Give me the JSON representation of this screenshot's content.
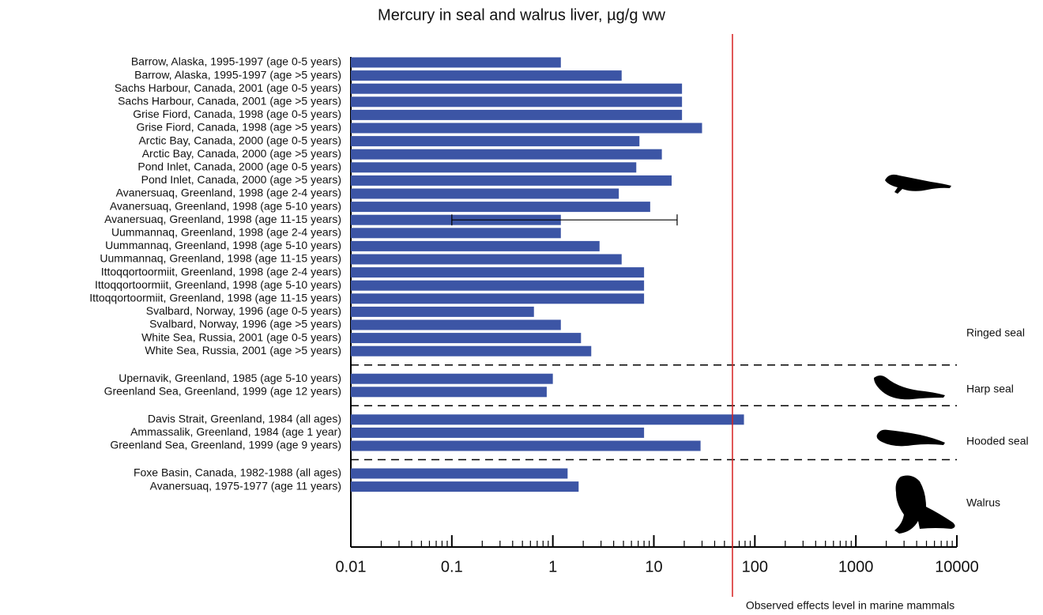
{
  "chart_data": {
    "type": "bar",
    "title": "Mercury in seal and walrus liver, µg/g ww",
    "log_x": true,
    "color": "#3c55a5",
    "groups": [
      {
        "name": "Ringed seal",
        "categories": [
          "Barrow, Alaska, 1995-1997 (age 0-5 years)",
          "Barrow, Alaska, 1995-1997 (age >5 years)",
          "Sachs Harbour, Canada, 2001 (age 0-5 years)",
          "Sachs Harbour, Canada, 2001 (age >5 years)",
          "Grise Fiord, Canada, 1998  (age 0-5 years)",
          "Grise Fiord, Canada, 1998 (age >5 years)",
          "Arctic Bay, Canada, 2000  (age 0-5 years)",
          "Arctic Bay, Canada, 2000 (age >5 years)",
          "Pond Inlet, Canada, 2000  (age 0-5 years)",
          "Pond Inlet, Canada, 2000 (age >5 years)",
          "Avanersuaq, Greenland, 1998 (age 2-4 years)",
          "Avanersuaq, Greenland, 1998 (age 5-10 years)",
          "Avanersuaq, Greenland, 1998 (age 11-15 years)",
          "Uummannaq, Greenland, 1998 (age 2-4 years)",
          "Uummannaq, Greenland, 1998 (age 5-10 years)",
          "Uummannaq, Greenland, 1998 (age 11-15 years)",
          "Ittoqqortoormiit, Greenland, 1998 (age 2-4 years)",
          "Ittoqqortoormiit, Greenland, 1998 (age 5-10 years)",
          "Ittoqqortoormiit, Greenland, 1998 (age 11-15 years)",
          "Svalbard, Norway, 1996  (age 0-5 years)",
          "Svalbard, Norway, 1996 (age >5 years)",
          "White Sea, Russia, 2001  (age 0-5 years)",
          "White Sea, Russia, 2001 (age >5 years)"
        ],
        "values": [
          1.2,
          4.8,
          19,
          19,
          19,
          30,
          7.2,
          12,
          6.7,
          15,
          4.5,
          9.2,
          1.2,
          1.2,
          2.9,
          4.8,
          8,
          8,
          8,
          0.65,
          1.2,
          1.9,
          2.4
        ],
        "error_low": [
          null,
          null,
          null,
          null,
          null,
          null,
          null,
          null,
          null,
          null,
          null,
          null,
          0.1,
          null,
          null,
          null,
          null,
          null,
          null,
          null,
          null,
          null,
          null
        ],
        "error_high": [
          null,
          null,
          null,
          null,
          null,
          null,
          null,
          null,
          null,
          null,
          null,
          null,
          17,
          null,
          null,
          null,
          null,
          null,
          null,
          null,
          null,
          null,
          null
        ]
      },
      {
        "name": "Harp seal",
        "categories": [
          "Upernavik, Greenland, 1985 (age 5-10 years)",
          "Greenland Sea, Greenland, 1999 (age 12 years)"
        ],
        "values": [
          1.0,
          0.87
        ]
      },
      {
        "name": "Hooded seal",
        "categories": [
          "Davis Strait, Greenland, 1984 (all ages)",
          "Ammassalik, Greenland, 1984 (age 1 year)",
          "Greenland Sea, Greenland, 1999 (age 9 years)"
        ],
        "values": [
          78,
          8,
          29
        ]
      },
      {
        "name": "Walrus",
        "categories": [
          "Foxe Basin, Canada, 1982-1988 (all ages)",
          "Avanersuaq, 1975-1977 (age 11 years)"
        ],
        "values": [
          1.4,
          1.8
        ]
      }
    ],
    "xlim": [
      0.01,
      10000
    ],
    "xticks": [
      0.01,
      0.1,
      1,
      10,
      100,
      1000,
      10000
    ],
    "xminorticks": [
      0.02,
      0.03,
      0.04,
      0.05,
      0.06,
      0.07,
      0.08,
      0.09,
      0.2,
      0.3,
      0.4,
      0.5,
      0.6,
      0.7,
      0.8,
      0.9,
      2,
      3,
      4,
      5,
      6,
      7,
      8,
      9,
      20,
      30,
      40,
      50,
      60,
      70,
      80,
      90,
      200,
      300,
      400,
      500,
      600,
      700,
      800,
      900,
      2000,
      3000,
      4000,
      5000,
      6000,
      7000,
      8000,
      9000
    ],
    "threshold": {
      "value": 60,
      "label": "Observed effects level in marine mammals",
      "color": "#d62020"
    }
  }
}
